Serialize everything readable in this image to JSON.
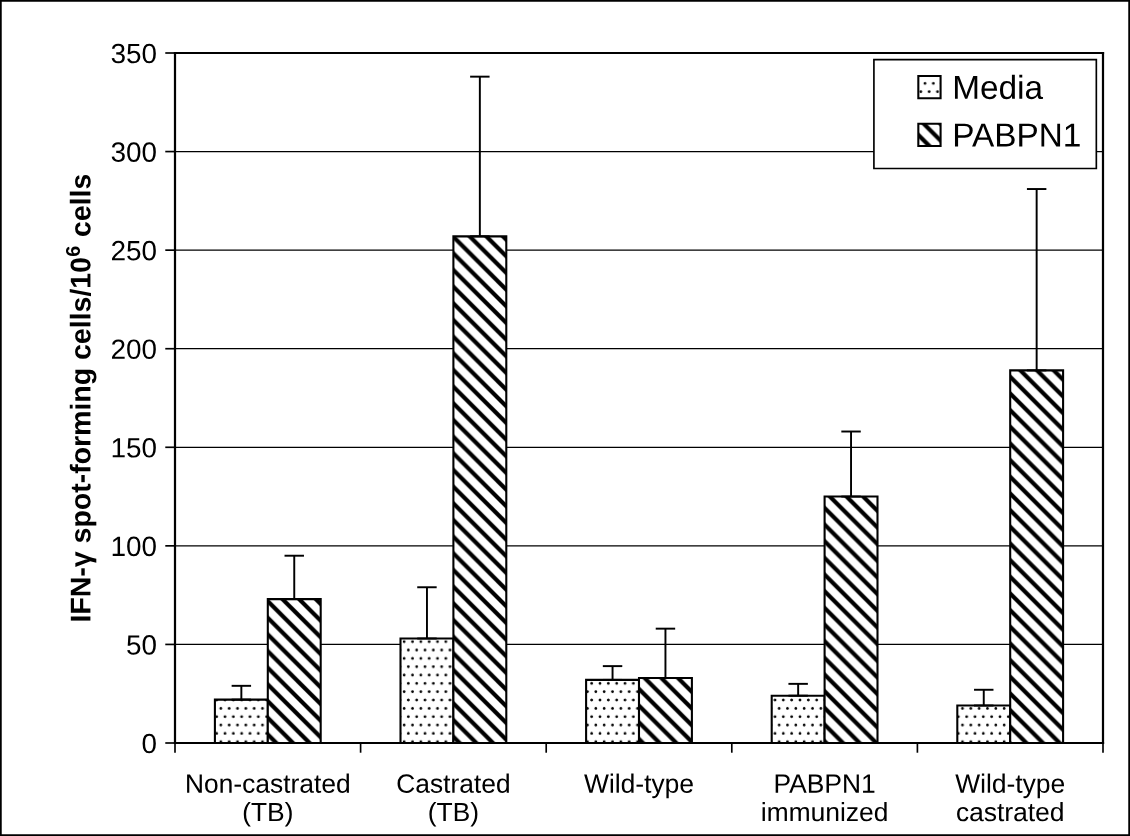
{
  "chart_data": {
    "type": "bar",
    "ylabel": "IFN-γ spot-forming cells/10$^{6}$ cells",
    "categories": [
      "Non-castrated\n(TB)",
      "Castrated\n(TB)",
      "Wild-type",
      "PABPN1\nimmunized",
      "Wild-type\ncastrated"
    ],
    "series": [
      {
        "name": "Media",
        "color": "#000000",
        "values": [
          22,
          53,
          32,
          24,
          19
        ],
        "errors": [
          [
            22,
            29
          ],
          [
            53,
            79
          ],
          [
            32,
            39
          ],
          [
            24,
            30
          ],
          [
            19,
            27
          ]
        ]
      },
      {
        "name": "PABPN1",
        "color": "#000000",
        "values": [
          73,
          257,
          33,
          125,
          189
        ],
        "errors": [
          [
            73,
            95
          ],
          [
            257,
            338
          ],
          [
            33,
            58
          ],
          [
            125,
            158
          ],
          [
            189,
            281
          ]
        ]
      }
    ],
    "ylim": [
      0,
      350
    ],
    "yticks": [
      0,
      50,
      100,
      150,
      200,
      250,
      300,
      350
    ],
    "grid": "y",
    "legend": "top right"
  }
}
